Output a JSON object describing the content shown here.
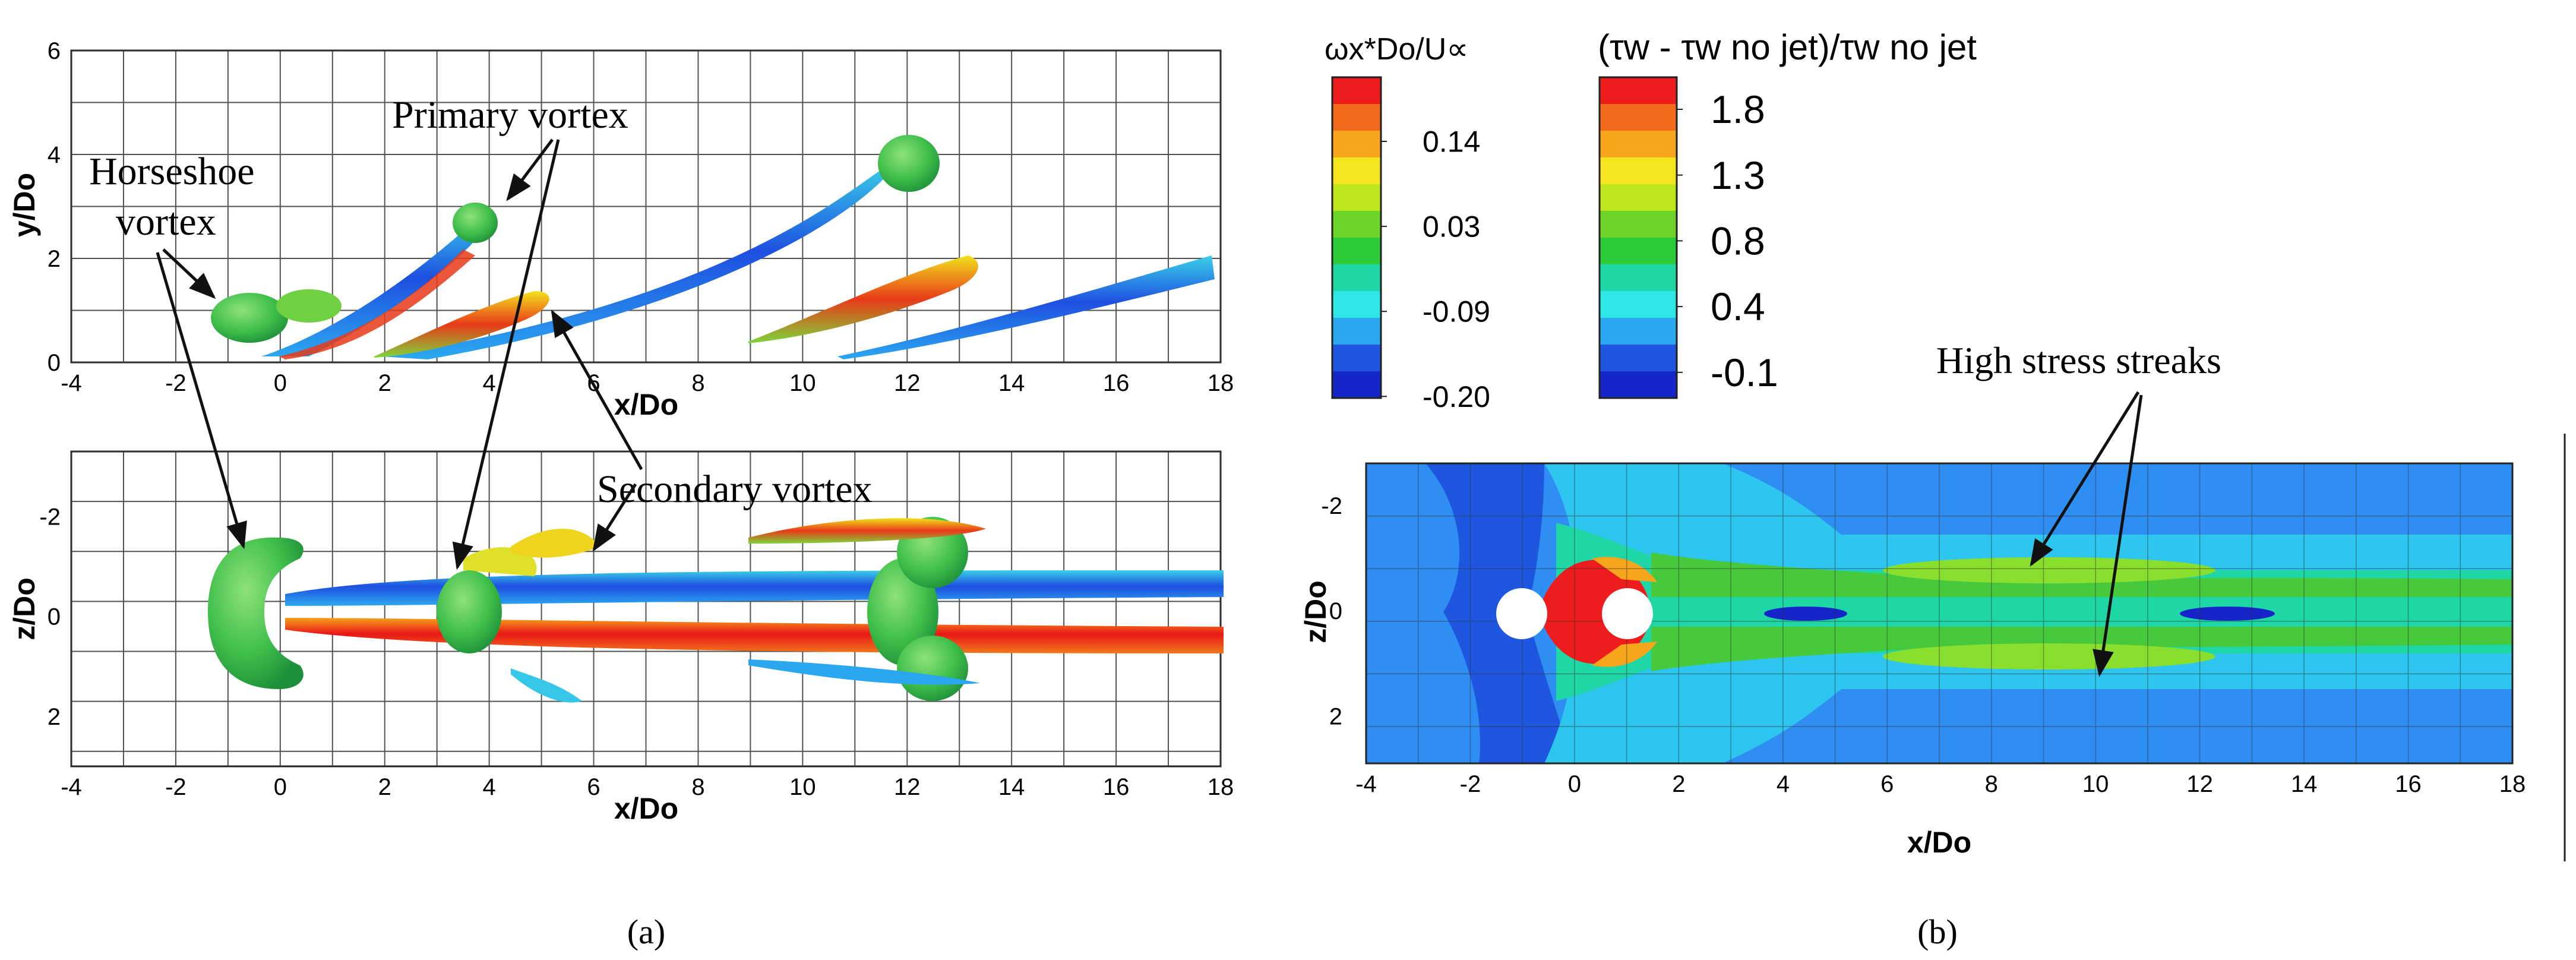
{
  "figure": {
    "panel_a": {
      "caption": "(a)",
      "top_plot": {
        "ylabel": "y/Do",
        "xlabel": "x/Do",
        "xticks": [
          "-4",
          "-2",
          "0",
          "2",
          "4",
          "6",
          "8",
          "10",
          "12",
          "14",
          "16",
          "18"
        ],
        "yticks": [
          "0",
          "2",
          "4",
          "6"
        ]
      },
      "bottom_plot": {
        "ylabel": "z/Do",
        "xlabel": "x/Do",
        "xticks": [
          "-4",
          "-2",
          "0",
          "2",
          "4",
          "6",
          "8",
          "10",
          "12",
          "14",
          "16",
          "18"
        ],
        "yticks": [
          "-2",
          "0",
          "2"
        ]
      },
      "annotations": {
        "horseshoe_line1": "Horseshoe",
        "horseshoe_line2": "vortex",
        "primary": "Primary vortex",
        "secondary": "Secondary vortex"
      },
      "colorbar": {
        "title": "ωx*Do/U∝",
        "ticks": [
          "0.14",
          "0.03",
          "-0.09",
          "-0.20"
        ],
        "colors": [
          "#ee1c1c",
          "#f36a1c",
          "#f7a51c",
          "#f5e51e",
          "#bde61c",
          "#6fd42a",
          "#2fcc3a",
          "#1fd6a6",
          "#2ee6e6",
          "#2aa7ef",
          "#1f56e0",
          "#1525c8"
        ]
      }
    },
    "panel_b": {
      "caption": "(b)",
      "colorbar": {
        "title": "(τw - τw no jet)/τw no jet",
        "ticks": [
          "1.8",
          "1.3",
          "0.8",
          "0.4",
          "-0.1"
        ],
        "colors": [
          "#ee1c1c",
          "#f36a1c",
          "#f7a51c",
          "#f5e51e",
          "#bde61c",
          "#6fd42a",
          "#2fcc3a",
          "#1fd6a6",
          "#2ee6e6",
          "#2aa7ef",
          "#1f56e0",
          "#1525c8"
        ]
      },
      "contour_plot": {
        "ylabel": "z/Do",
        "xlabel": "x/Do",
        "xticks": [
          "-4",
          "-2",
          "0",
          "2",
          "4",
          "6",
          "8",
          "10",
          "12",
          "14",
          "16",
          "18"
        ],
        "yticks": [
          "-2",
          "0",
          "2"
        ]
      },
      "annotation": "High stress streaks"
    }
  }
}
